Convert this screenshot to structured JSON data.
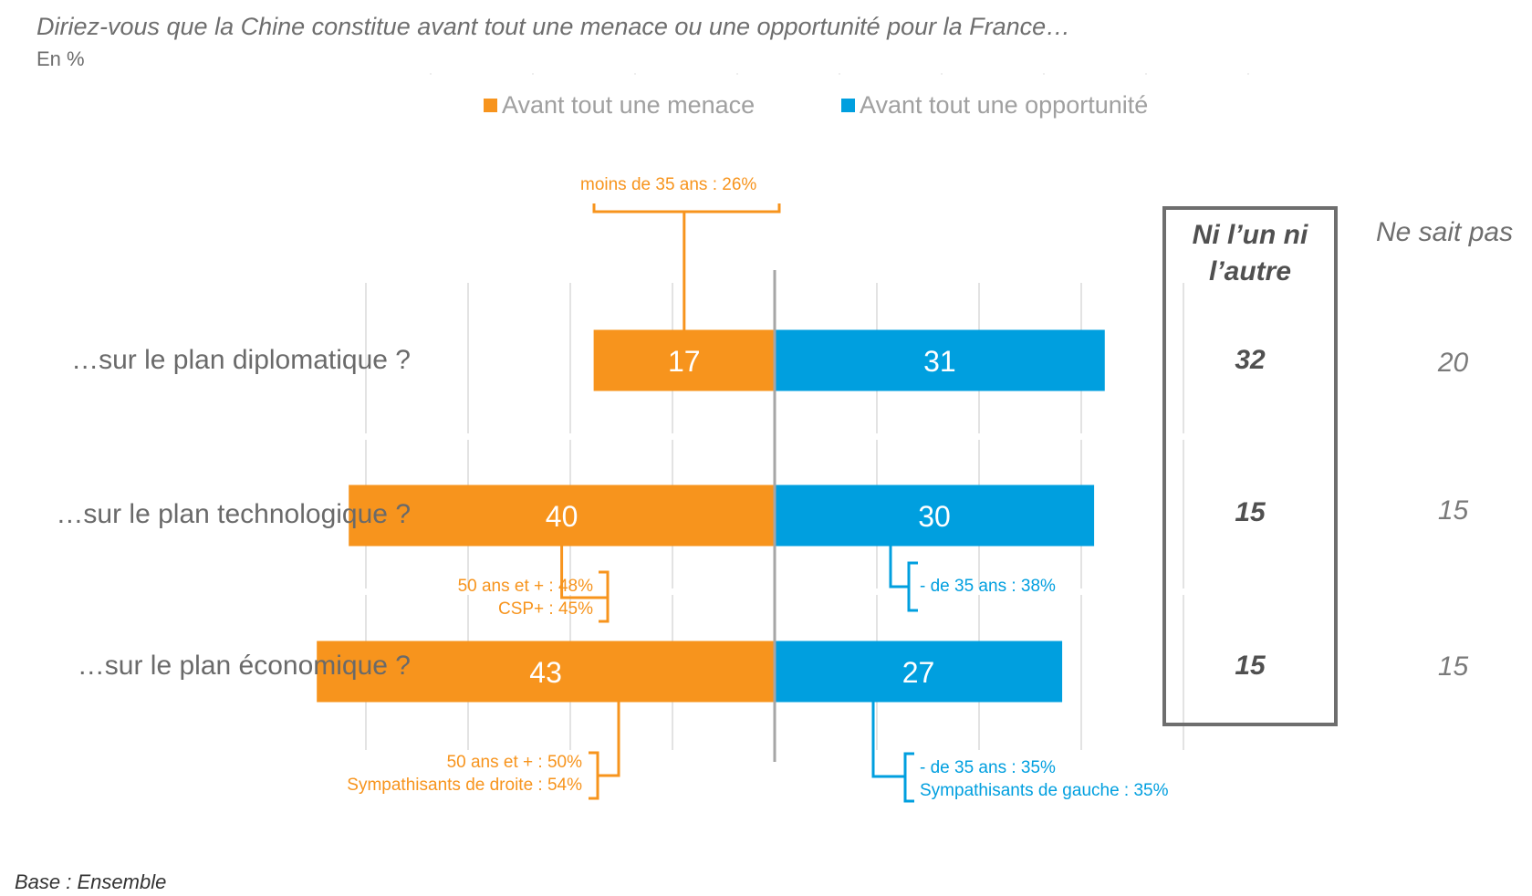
{
  "header": {
    "title": "Diriez-vous que la Chine constitue avant tout une menace ou une opportunité pour la France…",
    "unit": "En %"
  },
  "legend": [
    {
      "label": "Avant tout une menace",
      "color": "#f7941d"
    },
    {
      "label": "Avant tout une opportunité",
      "color": "#009fdf"
    }
  ],
  "columns": {
    "neither_header": "Ni l’un ni l’autre",
    "neither_header_line1": "Ni l’un ni",
    "neither_header_line2": "l’autre",
    "dontknow_header": "Ne sait pas"
  },
  "footer": {
    "base": "Base : Ensemble"
  },
  "annotations": [
    {
      "category_index": 0,
      "side": "menace",
      "position": "above",
      "lines": [
        "moins de 35 ans : 26%"
      ]
    },
    {
      "category_index": 1,
      "side": "menace",
      "position": "below",
      "lines": [
        "50 ans et + : 48%",
        "CSP+ : 45%"
      ]
    },
    {
      "category_index": 1,
      "side": "opportunite",
      "position": "below",
      "lines": [
        "- de 35 ans : 38%"
      ]
    },
    {
      "category_index": 2,
      "side": "menace",
      "position": "below",
      "lines": [
        "50 ans et + : 50%",
        "Sympathisants de droite : 54%"
      ]
    },
    {
      "category_index": 2,
      "side": "opportunite",
      "position": "below",
      "lines": [
        "- de 35 ans : 35%",
        "Sympathisants de gauche  : 35%"
      ]
    }
  ],
  "chart_data": {
    "type": "bar",
    "orientation": "horizontal-diverging",
    "title": "Diriez-vous que la Chine constitue avant tout une menace ou une opportunité pour la France…",
    "subtitle": "En %",
    "categories": [
      "…sur le plan diplomatique ?",
      "…sur le plan technologique ?",
      "…sur le plan économique ?"
    ],
    "series": [
      {
        "name": "Avant tout une menace",
        "color": "#f7941d",
        "direction": "left",
        "values": [
          17,
          40,
          43
        ]
      },
      {
        "name": "Avant tout une opportunité",
        "color": "#009fdf",
        "direction": "right",
        "values": [
          31,
          30,
          27
        ]
      }
    ],
    "extra_columns": [
      {
        "name": "Ni l’un ni l’autre",
        "values": [
          32,
          15,
          15
        ]
      },
      {
        "name": "Ne sait pas",
        "values": [
          20,
          15,
          15
        ]
      }
    ],
    "xlim": [
      -45,
      40
    ],
    "grid": true,
    "legend_position": "top-center",
    "footnote": "Base : Ensemble"
  }
}
